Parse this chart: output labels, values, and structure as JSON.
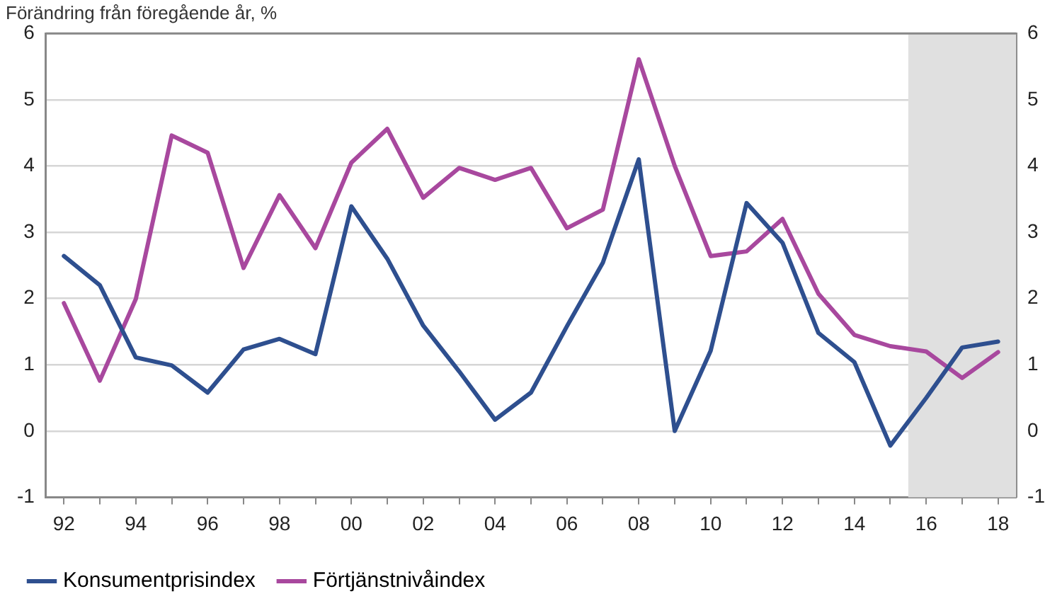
{
  "chart_data": {
    "type": "line",
    "subtitle": "Förändring från föregående år, %",
    "x": [
      1992,
      1993,
      1994,
      1995,
      1996,
      1997,
      1998,
      1999,
      2000,
      2001,
      2002,
      2003,
      2004,
      2005,
      2006,
      2007,
      2008,
      2009,
      2010,
      2011,
      2012,
      2013,
      2014,
      2015,
      2016,
      2017,
      2018
    ],
    "series": [
      {
        "name": "Konsumentprisindex",
        "color": "#2e4f8f",
        "values": [
          2.64,
          2.2,
          1.11,
          0.99,
          0.58,
          1.23,
          1.39,
          1.16,
          3.39,
          2.6,
          1.59,
          0.9,
          0.17,
          0.58,
          1.58,
          2.54,
          4.1,
          0,
          1.21,
          3.44,
          2.84,
          1.48,
          1.04,
          -0.22,
          0.5,
          1.26,
          1.35
        ]
      },
      {
        "name": "Förtjänstnivåindex",
        "color": "#a8489e",
        "values": [
          1.93,
          0.76,
          1.99,
          4.46,
          4.2,
          2.46,
          3.56,
          2.76,
          4.05,
          4.56,
          3.52,
          3.97,
          3.79,
          3.97,
          3.06,
          3.34,
          5.61,
          4.0,
          2.64,
          2.71,
          3.2,
          2.07,
          1.45,
          1.28,
          1.2,
          0.8,
          1.19
        ]
      }
    ],
    "xlim": [
      1991.5,
      2018.5
    ],
    "xticks": [
      {
        "value": 1992,
        "label": "92"
      },
      {
        "value": 1993,
        "label": null
      },
      {
        "value": 1994,
        "label": "94"
      },
      {
        "value": 1995,
        "label": null
      },
      {
        "value": 1996,
        "label": "96"
      },
      {
        "value": 1997,
        "label": null
      },
      {
        "value": 1998,
        "label": "98"
      },
      {
        "value": 1999,
        "label": null
      },
      {
        "value": 2000,
        "label": "00"
      },
      {
        "value": 2001,
        "label": null
      },
      {
        "value": 2002,
        "label": "02"
      },
      {
        "value": 2003,
        "label": null
      },
      {
        "value": 2004,
        "label": "04"
      },
      {
        "value": 2005,
        "label": null
      },
      {
        "value": 2006,
        "label": "06"
      },
      {
        "value": 2007,
        "label": null
      },
      {
        "value": 2008,
        "label": "08"
      },
      {
        "value": 2009,
        "label": null
      },
      {
        "value": 2010,
        "label": "10"
      },
      {
        "value": 2011,
        "label": null
      },
      {
        "value": 2012,
        "label": "12"
      },
      {
        "value": 2013,
        "label": null
      },
      {
        "value": 2014,
        "label": "14"
      },
      {
        "value": 2015,
        "label": null
      },
      {
        "value": 2016,
        "label": "16"
      },
      {
        "value": 2017,
        "label": null
      },
      {
        "value": 2018,
        "label": "18"
      }
    ],
    "ylim": [
      -1,
      6
    ],
    "yticks": [
      -1,
      0,
      1,
      2,
      3,
      4,
      5,
      6
    ],
    "y2lim": [
      -1,
      6
    ],
    "y2ticks": [
      -1,
      0,
      1,
      2,
      3,
      4,
      5,
      6
    ],
    "bands": [
      {
        "axis": "x",
        "from": 2015.5,
        "to": 2018.5,
        "color": "#e0e0e0"
      }
    ],
    "grid": "y",
    "legend": "bottom left",
    "marker": "none",
    "line_style": "solid"
  }
}
